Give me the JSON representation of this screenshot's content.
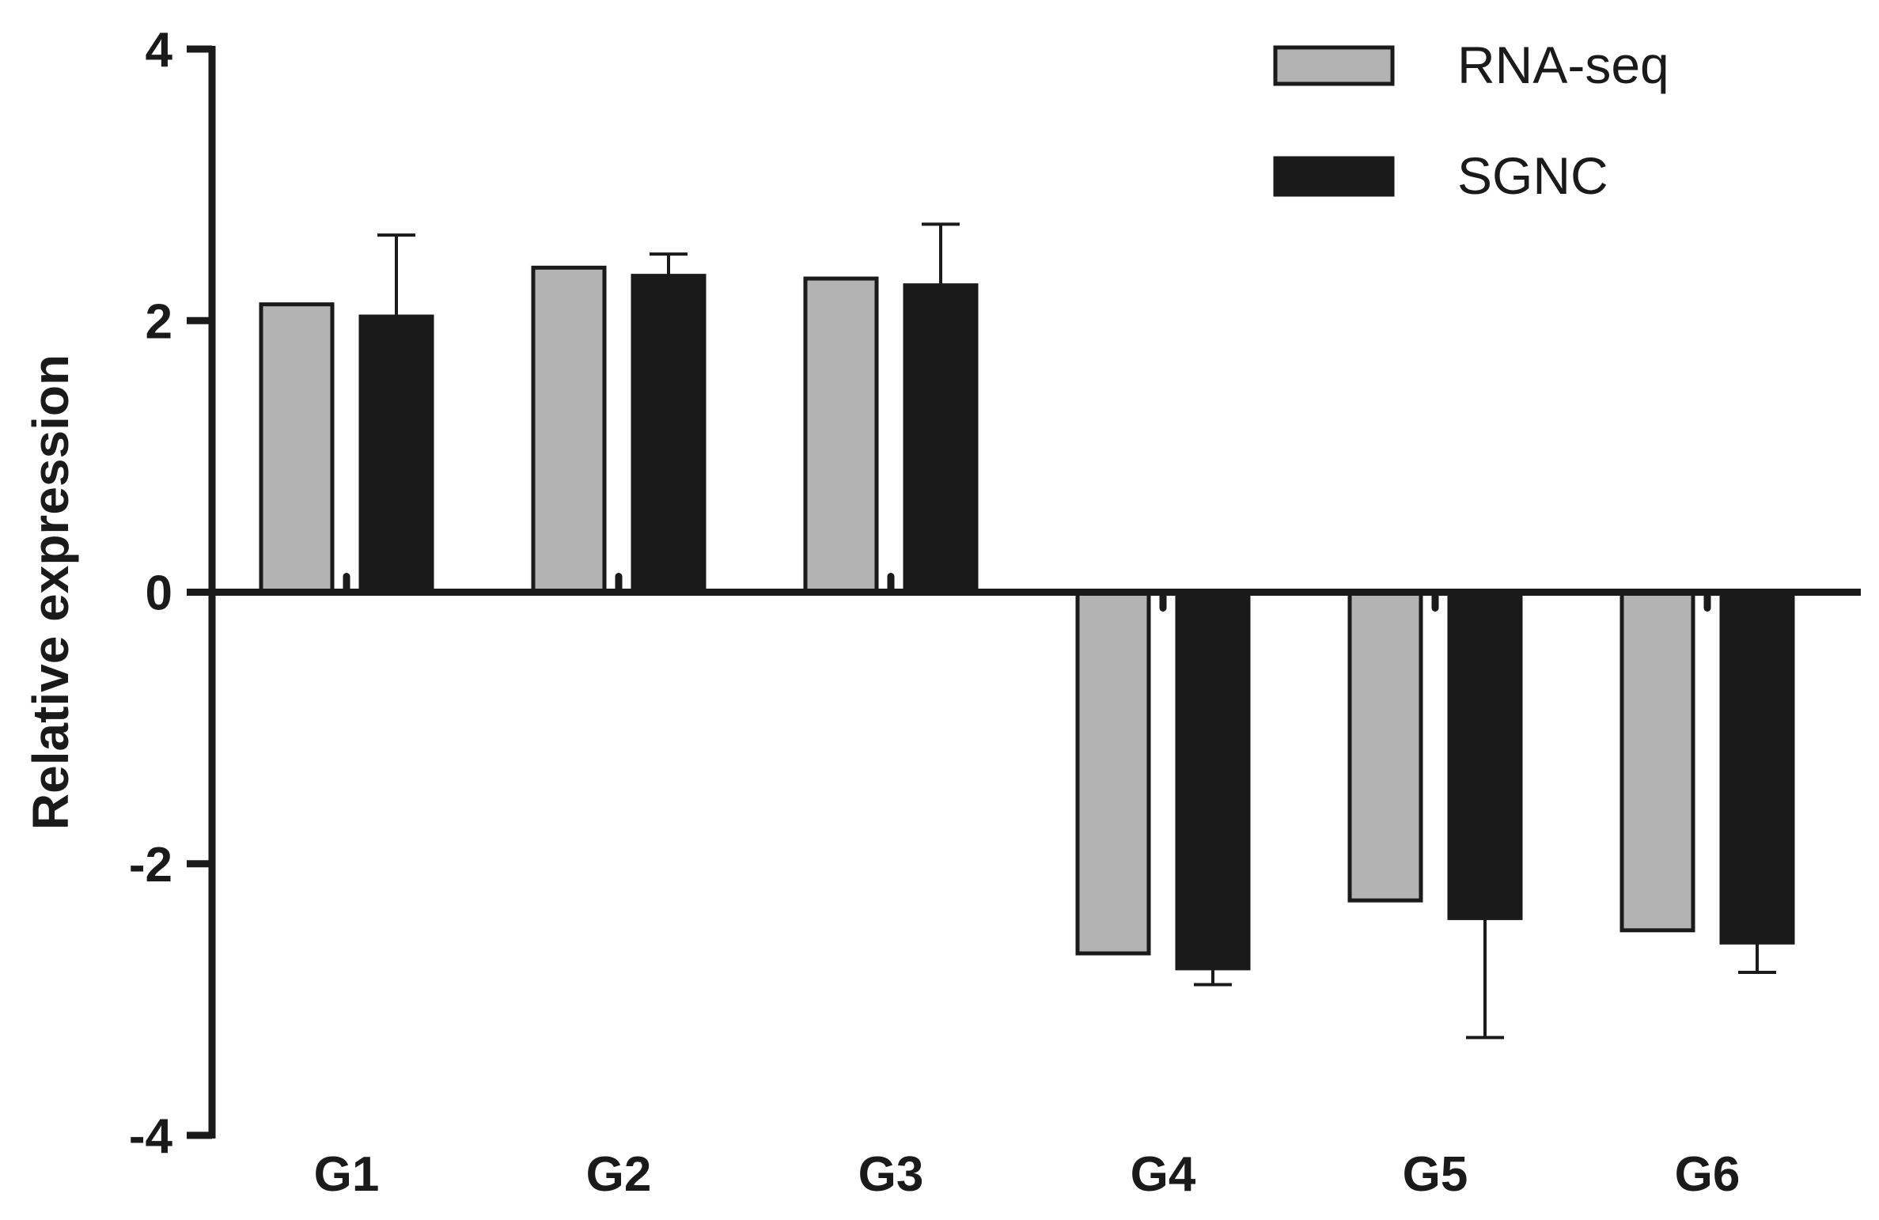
{
  "chart_data": {
    "type": "bar",
    "title": "",
    "xlabel": "",
    "ylabel": "Relative expression",
    "ylim": [
      -4,
      4
    ],
    "yticks": [
      4,
      2,
      0,
      -2,
      -4
    ],
    "ytick_labels": [
      "4",
      "2",
      "0",
      "-2",
      "-4"
    ],
    "grid": false,
    "legend_position": "top-right",
    "categories": [
      "G1",
      "G2",
      "G3",
      "G4",
      "G5",
      "G6"
    ],
    "series": [
      {
        "name": "RNA-seq",
        "color": "#b3b3b3",
        "values": [
          2.12,
          2.39,
          2.31,
          -2.66,
          -2.27,
          -2.49
        ],
        "errors": [
          0,
          0,
          0,
          0,
          0,
          0
        ]
      },
      {
        "name": "SGNC",
        "color": "#1a1a1a",
        "values": [
          2.03,
          2.33,
          2.26,
          -2.77,
          -2.4,
          -2.58
        ],
        "errors": [
          0.6,
          0.16,
          0.45,
          0.12,
          0.88,
          0.22
        ]
      }
    ]
  }
}
